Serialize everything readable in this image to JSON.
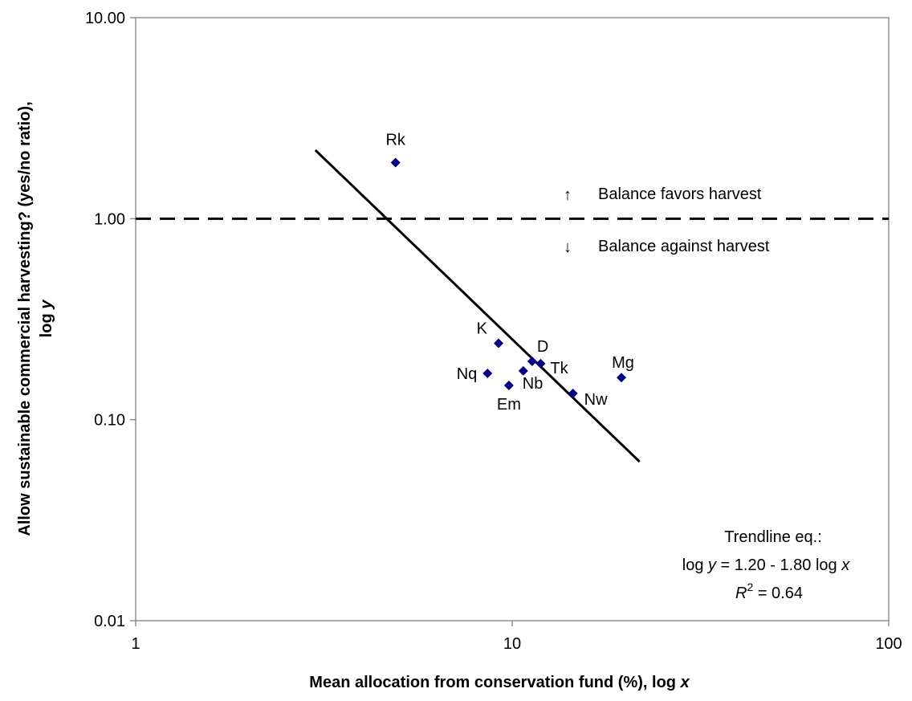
{
  "chart_data": {
    "type": "scatter",
    "title": "",
    "xlabel": {
      "text": "Mean allocation from conservation fund (%), log ",
      "var": "x"
    },
    "ylabel": {
      "line1": "Allow sustainable commercial harvesting? (yes/no ratio),",
      "line2": "log ",
      "var": "y"
    },
    "x_scale": "log",
    "y_scale": "log",
    "xlim": [
      1,
      100
    ],
    "ylim": [
      0.01,
      10
    ],
    "x_ticks": [
      {
        "value": 1,
        "label": "1"
      },
      {
        "value": 10,
        "label": "10"
      },
      {
        "value": 100,
        "label": "100"
      }
    ],
    "y_ticks": [
      {
        "value": 0.01,
        "label": "0.01"
      },
      {
        "value": 0.1,
        "label": "0.10"
      },
      {
        "value": 1,
        "label": "1.00"
      },
      {
        "value": 10,
        "label": "10.00"
      }
    ],
    "grid": false,
    "marker_color": "#000080",
    "points": [
      {
        "label": "Rk",
        "x": 4.9,
        "y": 1.9
      },
      {
        "label": "K",
        "x": 9.2,
        "y": 0.24
      },
      {
        "label": "D",
        "x": 11.3,
        "y": 0.195
      },
      {
        "label": "Tk",
        "x": 11.9,
        "y": 0.19
      },
      {
        "label": "Nq",
        "x": 8.6,
        "y": 0.17
      },
      {
        "label": "Nb",
        "x": 10.7,
        "y": 0.175
      },
      {
        "label": "Em",
        "x": 9.8,
        "y": 0.148
      },
      {
        "label": "Nw",
        "x": 14.5,
        "y": 0.135
      },
      {
        "label": "Mg",
        "x": 19.5,
        "y": 0.162
      }
    ],
    "trendline": {
      "type": "power",
      "intercept_log10": 1.2,
      "slope": -1.8,
      "x_range": [
        3.0,
        21.8
      ],
      "color": "#000000"
    },
    "reference_line": {
      "y": 1.0,
      "style": "dashed",
      "color": "#000000"
    },
    "annotations": {
      "above": {
        "arrow": "↑",
        "text": "Balance favors harvest"
      },
      "below": {
        "arrow": "↓",
        "text": "Balance against harvest"
      }
    },
    "trendline_note": {
      "title": "Trendline eq.:",
      "eq_pre": "log ",
      "eq_var_y": "y",
      "eq_mid": " = 1.20 - 1.80 log ",
      "eq_var_x": "x",
      "r2_base": "R",
      "r2_exp": "2",
      "r2_rest": " = 0.64"
    }
  }
}
